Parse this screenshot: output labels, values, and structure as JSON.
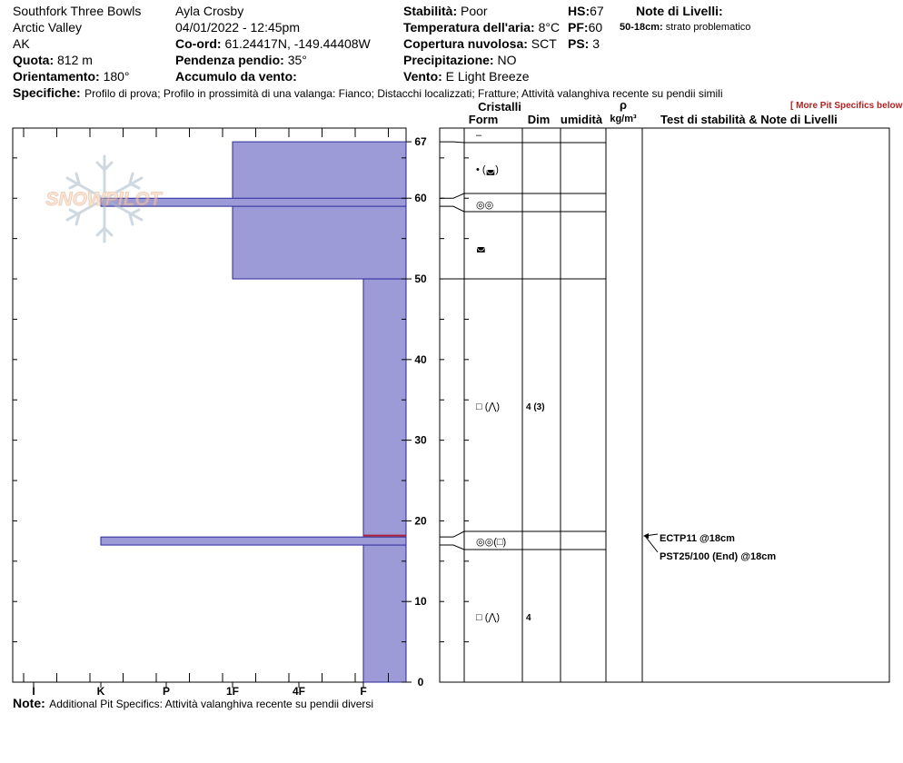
{
  "header": {
    "location_name": "Southfork Three Bowls",
    "area": "Arctic Valley",
    "state": "AK",
    "elevation_label": "Quota:",
    "elevation_value": "812 m",
    "aspect_label": "Orientamento:",
    "aspect_value": "180°",
    "observer": "Ayla Crosby",
    "datetime": "04/01/2022 - 12:45pm",
    "coord_label": "Co-ord:",
    "coord_value": "61.24417N, -149.44408W",
    "slope_label": "Pendenza pendio:",
    "slope_value": "35°",
    "wind_loading_label": "Accumulo da vento:",
    "stability_label": "Stabilità:",
    "stability_value": "Poor",
    "air_temp_label": "Temperatura dell'aria:",
    "air_temp_value": "8°C",
    "cloud_label": "Copertura nuvolosa:",
    "cloud_value": "SCT",
    "precip_label": "Precipitazione:",
    "precip_value": "NO",
    "wind_label": "Vento:",
    "wind_value": "E Light Breeze",
    "hs_label": "HS:",
    "hs_value": "67",
    "pf_label": "PF:",
    "pf_value": "60",
    "ps_label": "PS:",
    "ps_value": "3",
    "layer_notes_label": "Note di Livelli:",
    "layer_note_range": "50-18cm:",
    "layer_note_text": "strato problematico",
    "specifics_label": "Specifiche:",
    "specifics_text": "Profilo di prova;  Profilo in prossimità di una valanga: Fianco;  Distacchi localizzati;  Fratture;  Attività valanghiva recente su pendii simili",
    "more_specifics_link": "[ More Pit Specifics below ]"
  },
  "logo_text": "SNOWPILOT",
  "columns": {
    "cristalli": "Cristalli",
    "form": "Form",
    "dim": "Dim",
    "umidita": "umidità",
    "rho": "ρ",
    "density_unit": "kg/m³",
    "tests_title": "Test di stabilità & Note di Livelli"
  },
  "chart_data": {
    "type": "bar",
    "title": "",
    "y_axis": {
      "min": 0,
      "max": 67,
      "ticks": [
        0,
        10,
        20,
        30,
        40,
        50,
        60,
        67
      ]
    },
    "hardness_axis": {
      "categories": [
        "I",
        "K",
        "P",
        "1F",
        "4F",
        "F"
      ]
    },
    "layers": [
      {
        "top": 67,
        "bottom": 50,
        "hardness": "1F"
      },
      {
        "top": 60,
        "bottom": 59,
        "hardness": "K"
      },
      {
        "top": 50,
        "bottom": 0,
        "hardness": "F"
      },
      {
        "top": 18,
        "bottom": 17,
        "hardness": "K"
      }
    ],
    "weak_interface_cm": 18
  },
  "layer_boundaries_cm": [
    67,
    60,
    59,
    50,
    18,
    17,
    0
  ],
  "crystals": [
    {
      "mid_cm": 67.5,
      "form": "–",
      "size": ""
    },
    {
      "mid_cm": 63.5,
      "form": "• (◛)",
      "size": ""
    },
    {
      "mid_cm": 59.5,
      "form": "◎◎",
      "size": ""
    },
    {
      "mid_cm": 54.5,
      "form": "◛",
      "size": ""
    },
    {
      "mid_cm": 34,
      "form": "□ (⋀)",
      "size": "4 (3)"
    },
    {
      "mid_cm": 17.5,
      "form": "◎◎(□)",
      "size": ""
    },
    {
      "mid_cm": 8.5,
      "form": "□ (⋀)",
      "size": "4"
    }
  ],
  "tests": [
    {
      "label": "ECTP11 @18cm"
    },
    {
      "label": "PST25/100 (End) @18cm"
    }
  ],
  "footer": {
    "note_label": "Note:",
    "note_text": "Additional Pit Specifics: Attività valanghiva recente su pendii diversi"
  }
}
